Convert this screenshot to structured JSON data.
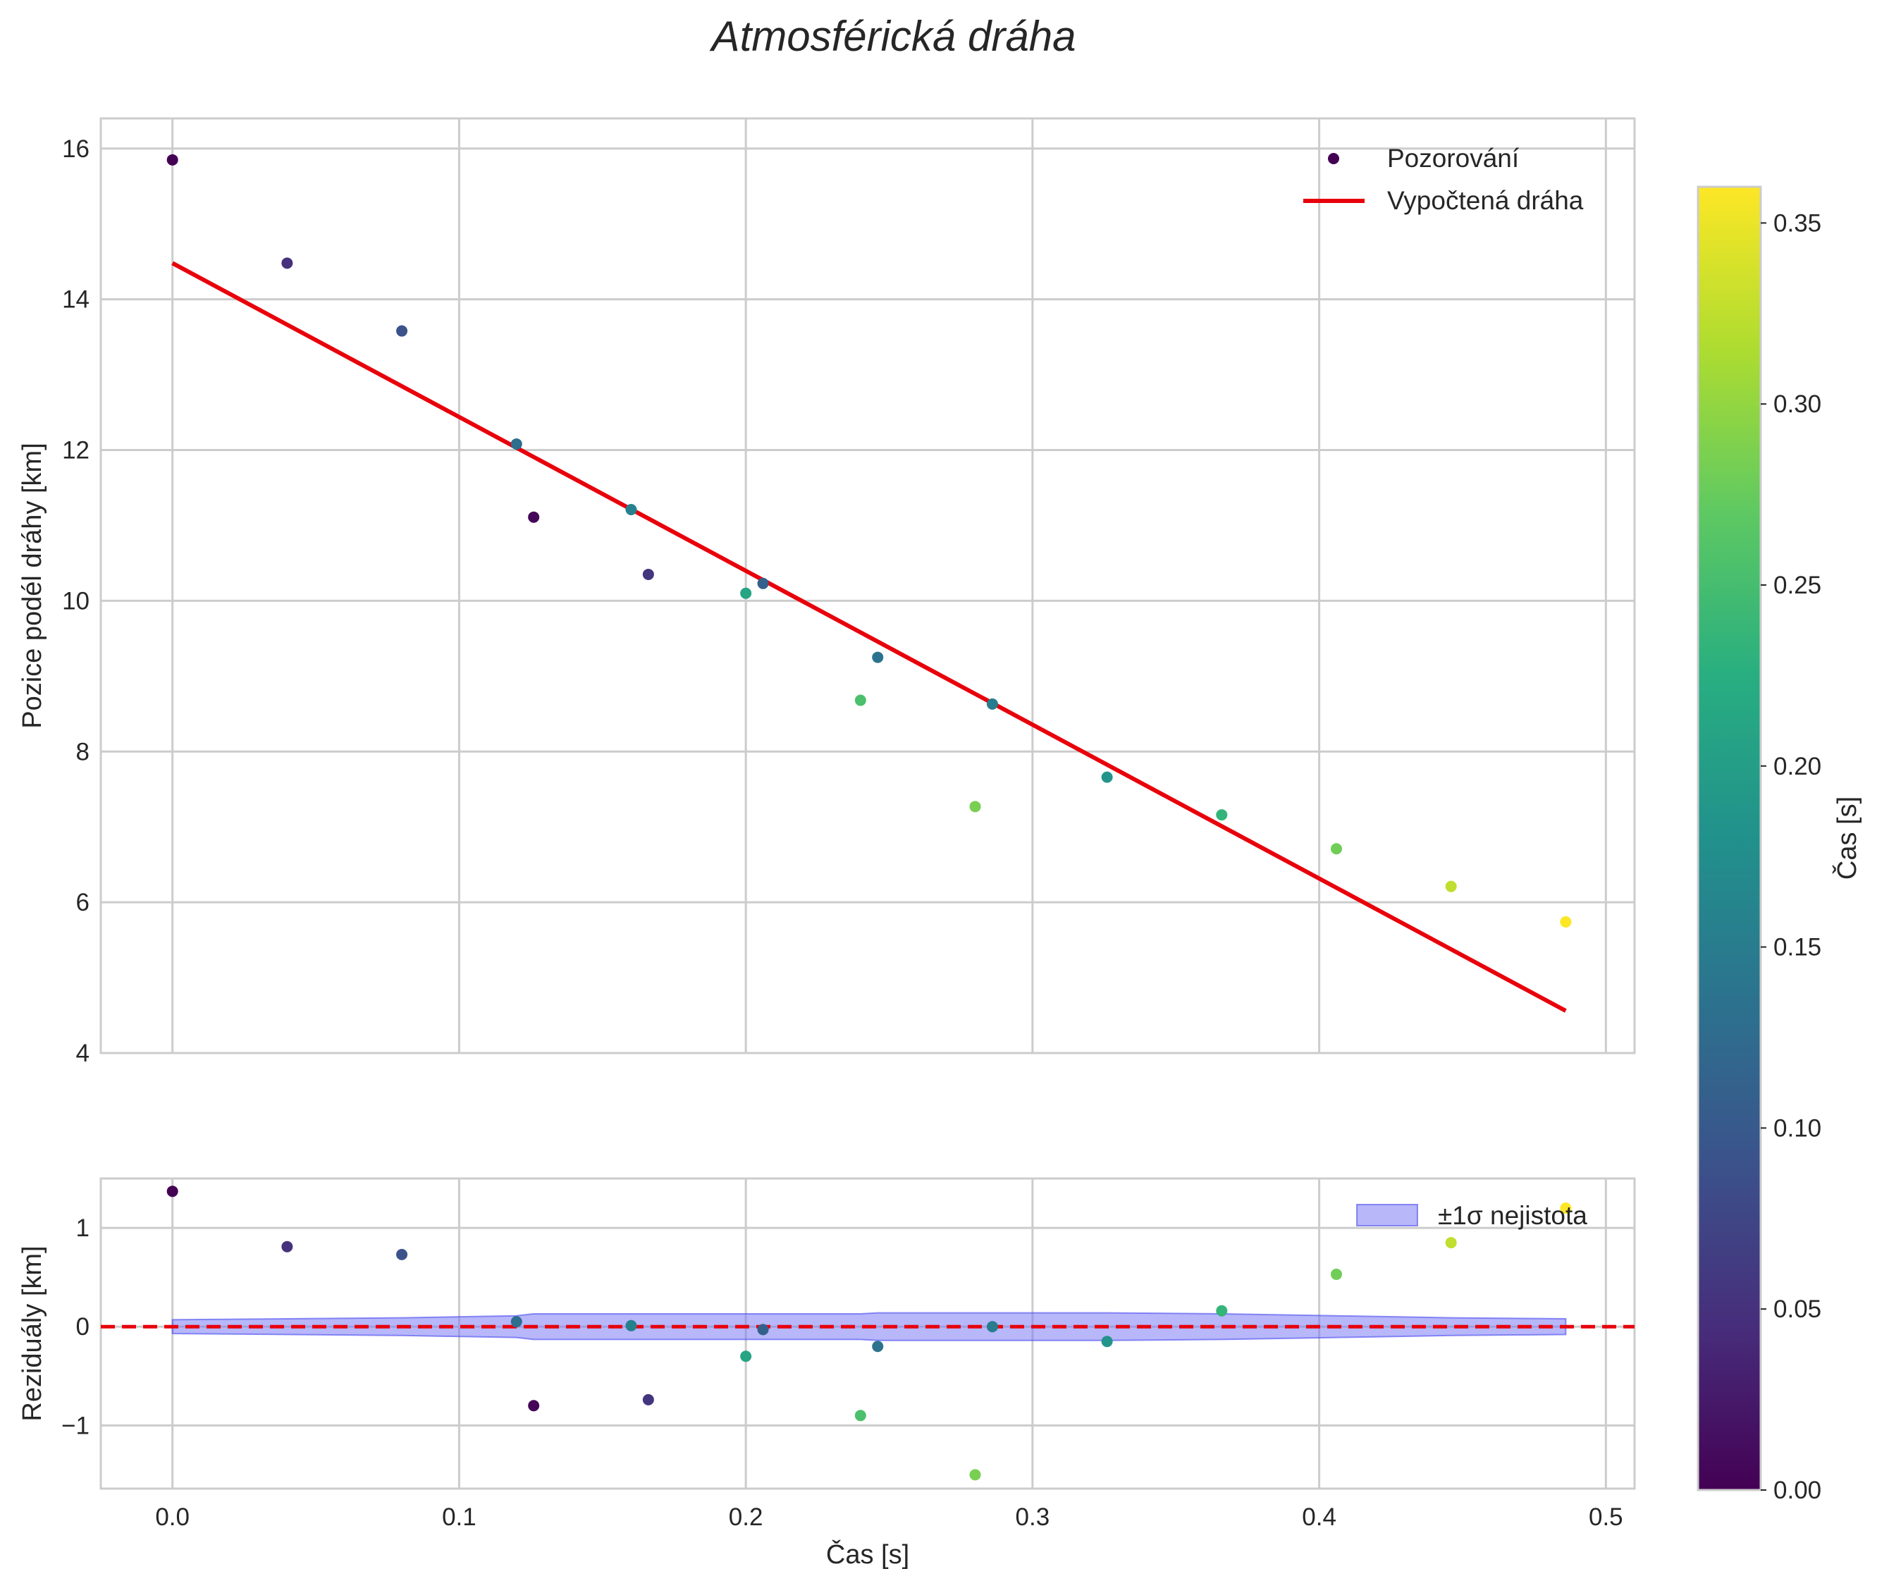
{
  "chart_data": {
    "title": "Atmosférická dráha",
    "colormap": "viridis",
    "panels": [
      {
        "name": "trajectory",
        "type": "scatter",
        "xlabel": "",
        "ylabel": "Pozice podél dráhy [km]",
        "xlim": [
          -0.025,
          0.51
        ],
        "ylim": [
          4,
          16.4
        ],
        "xticks": [
          "0.0",
          "0.1",
          "0.2",
          "0.3",
          "0.4",
          "0.5"
        ],
        "yticks": [
          "4",
          "6",
          "8",
          "10",
          "12",
          "14",
          "16"
        ],
        "grid": true,
        "legend_position": "top-right",
        "series": [
          {
            "name": "Pozorování",
            "type": "scatter",
            "x": [
              0.0,
              0.04,
              0.08,
              0.12,
              0.126,
              0.16,
              0.166,
              0.2,
              0.206,
              0.24,
              0.246,
              0.28,
              0.286,
              0.326,
              0.366,
              0.406,
              0.446,
              0.486
            ],
            "y": [
              15.85,
              14.48,
              13.58,
              12.08,
              11.11,
              11.21,
              10.35,
              10.1,
              10.23,
              8.68,
              9.25,
              7.27,
              8.63,
              7.66,
              7.16,
              6.71,
              6.21,
              5.74
            ],
            "color_values": [
              0.0,
              0.05,
              0.09,
              0.13,
              0.005,
              0.155,
              0.055,
              0.21,
              0.11,
              0.255,
              0.135,
              0.285,
              0.15,
              0.185,
              0.235,
              0.28,
              0.325,
              0.36
            ]
          },
          {
            "name": "Vypočtená dráha",
            "type": "line",
            "color": "#e8000b",
            "x": [
              0.0,
              0.486
            ],
            "y": [
              14.48,
              4.56
            ]
          }
        ]
      },
      {
        "name": "residuals",
        "type": "scatter",
        "xlabel": "Čas [s]",
        "ylabel": "Reziduály [km]",
        "xlim": [
          -0.025,
          0.51
        ],
        "ylim": [
          -1.64,
          1.5
        ],
        "xticks": [
          "0.0",
          "0.1",
          "0.2",
          "0.3",
          "0.4",
          "0.5"
        ],
        "yticks": [
          "−1",
          "0",
          "1"
        ],
        "grid": true,
        "legend_position": "top-right",
        "zero_line": {
          "y": 0,
          "color": "#e8000b",
          "style": "dashed"
        },
        "band": {
          "name": "±1σ nejistota",
          "color": "#6f6ff5",
          "x": [
            0.0,
            0.04,
            0.08,
            0.12,
            0.126,
            0.16,
            0.166,
            0.2,
            0.206,
            0.24,
            0.246,
            0.28,
            0.286,
            0.326,
            0.366,
            0.406,
            0.446,
            0.486
          ],
          "sigma": [
            0.07,
            0.08,
            0.09,
            0.11,
            0.13,
            0.13,
            0.13,
            0.13,
            0.13,
            0.13,
            0.14,
            0.14,
            0.14,
            0.14,
            0.13,
            0.11,
            0.09,
            0.08
          ]
        },
        "series": [
          {
            "name": "residuals",
            "type": "scatter",
            "x": [
              0.0,
              0.04,
              0.08,
              0.12,
              0.126,
              0.16,
              0.166,
              0.2,
              0.206,
              0.24,
              0.246,
              0.28,
              0.286,
              0.326,
              0.366,
              0.406,
              0.446,
              0.486
            ],
            "y": [
              1.37,
              0.81,
              0.73,
              0.05,
              -0.8,
              0.01,
              -0.74,
              -0.3,
              -0.03,
              -0.9,
              -0.2,
              -1.5,
              0.0,
              -0.15,
              0.16,
              0.53,
              0.85,
              1.2
            ],
            "color_values": [
              0.0,
              0.05,
              0.09,
              0.13,
              0.005,
              0.155,
              0.055,
              0.21,
              0.11,
              0.255,
              0.135,
              0.285,
              0.15,
              0.185,
              0.235,
              0.28,
              0.325,
              0.36
            ]
          }
        ]
      }
    ],
    "colorbar": {
      "label": "Čas [s]",
      "range": [
        0.0,
        0.36
      ],
      "ticks": [
        "0.00",
        "0.05",
        "0.10",
        "0.15",
        "0.20",
        "0.25",
        "0.30",
        "0.35"
      ]
    }
  }
}
